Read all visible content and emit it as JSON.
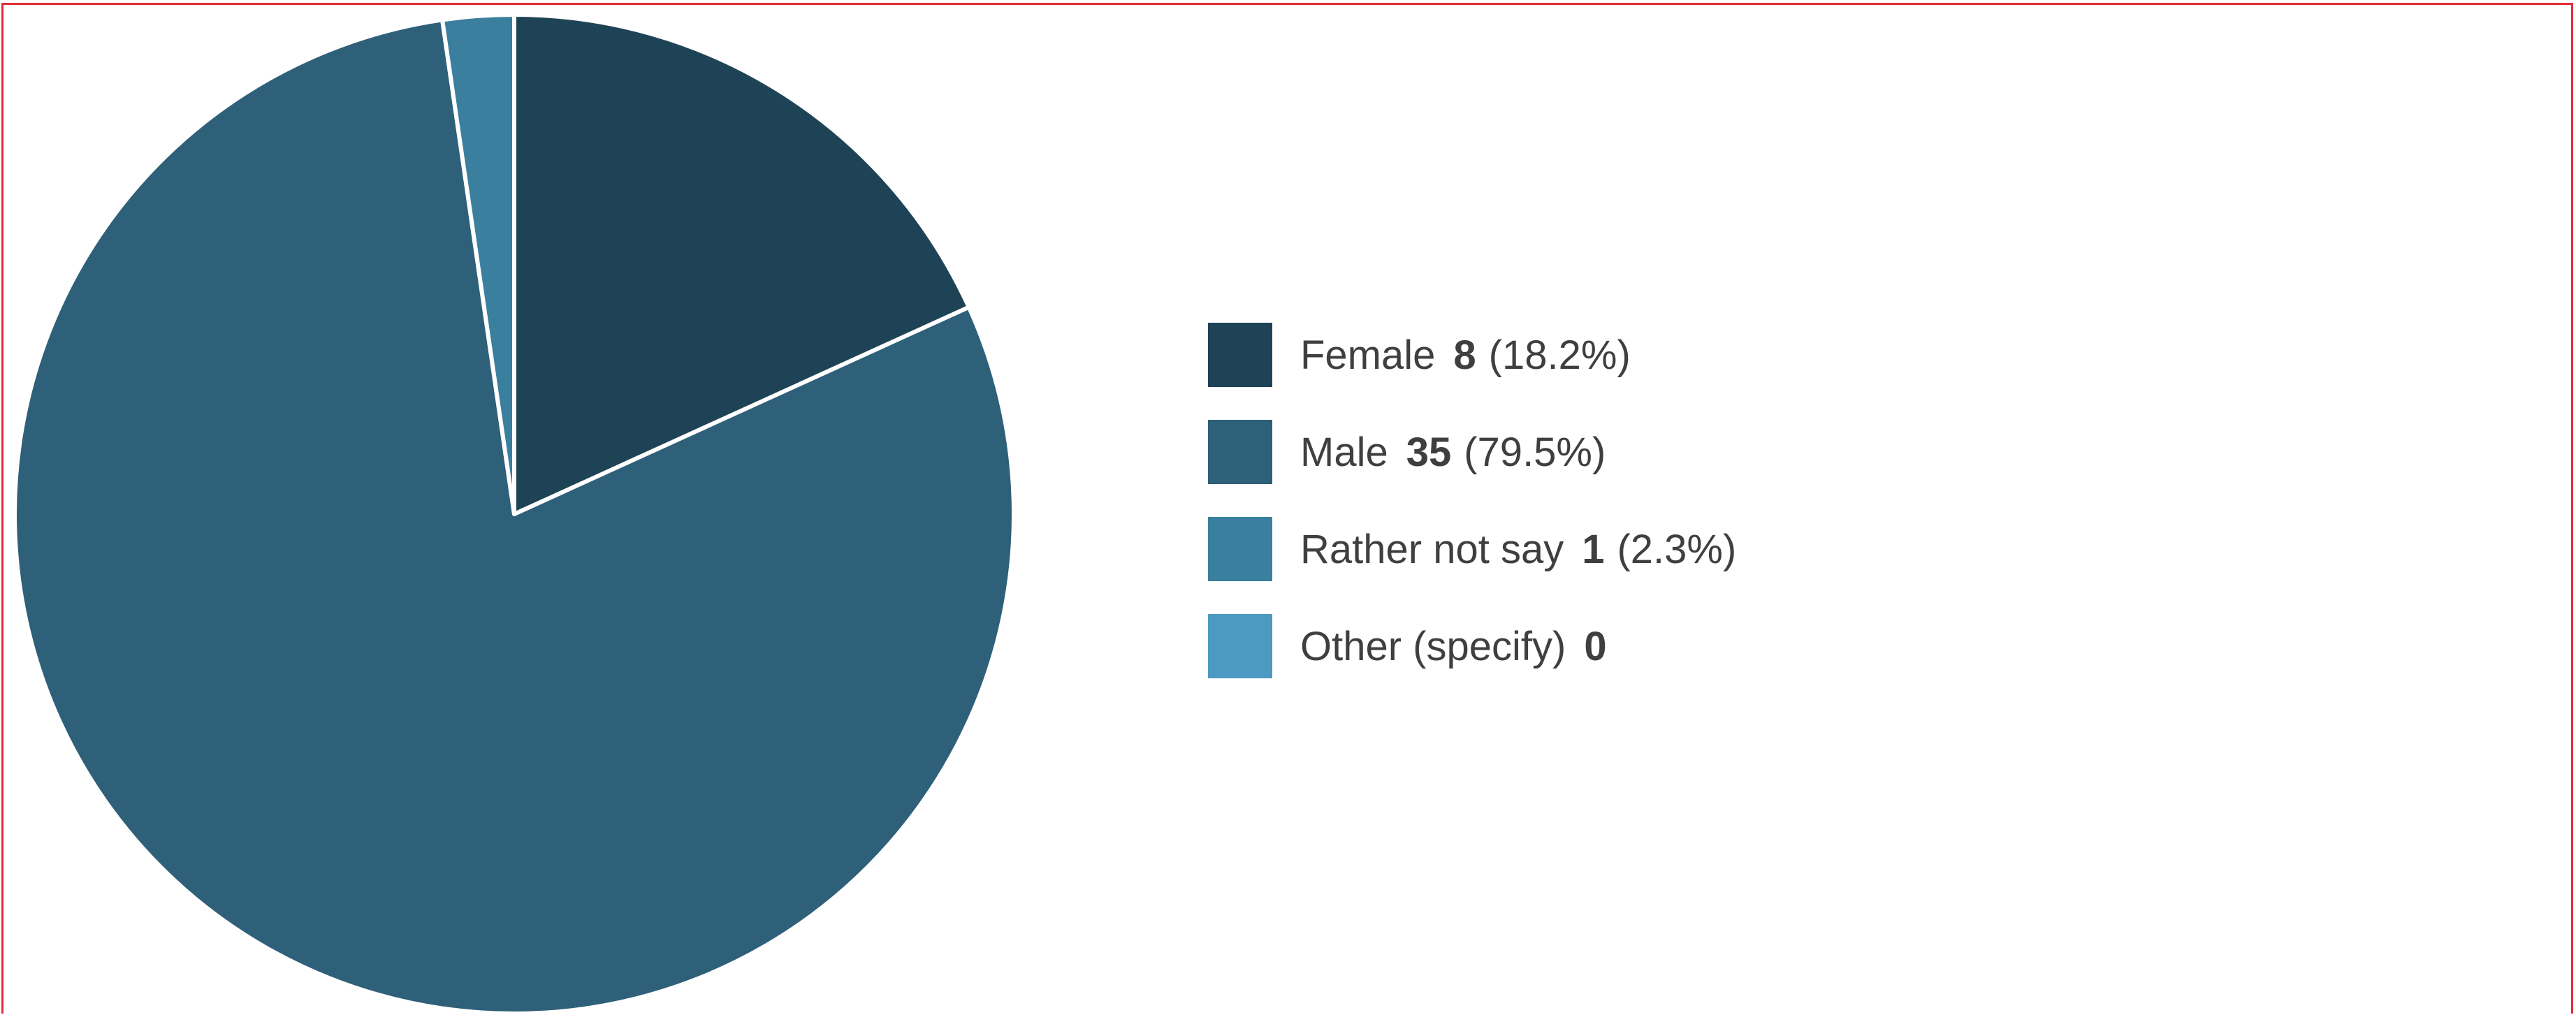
{
  "chart_data": {
    "type": "pie",
    "start_angle_deg": 90,
    "direction": "clockwise",
    "slices": [
      {
        "label": "Female",
        "count": "8",
        "percent": "(18.2%)",
        "value": 18.2,
        "color": "#1f4356"
      },
      {
        "label": "Male",
        "count": "35",
        "percent": "(79.5%)",
        "value": 79.5,
        "color": "#2e6079"
      },
      {
        "label": "Rather not say",
        "count": "1",
        "percent": "(2.3%)",
        "value": 2.3,
        "color": "#3b7f9f"
      },
      {
        "label": "Other (specify)",
        "count": "0",
        "percent": "",
        "value": 0,
        "color": "#4c9ac1"
      }
    ],
    "legend_position": "right"
  }
}
